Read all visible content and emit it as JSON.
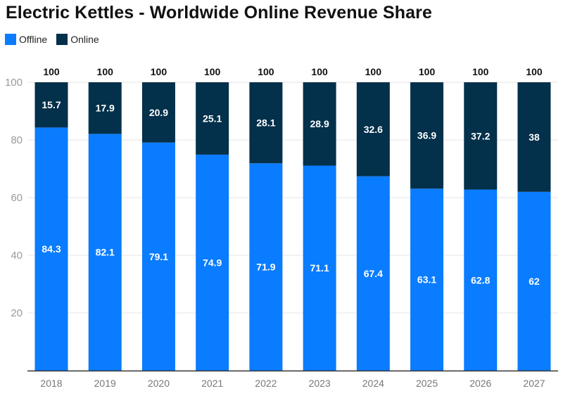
{
  "chart_data": {
    "type": "bar",
    "stacked": true,
    "title": "Electric Kettles - Worldwide Online Revenue Share",
    "xlabel": "",
    "ylabel": "",
    "ylim": [
      0,
      100
    ],
    "yticks": [
      20,
      40,
      60,
      80,
      100
    ],
    "grid": true,
    "legend_position": "top-left",
    "categories": [
      "2018",
      "2019",
      "2020",
      "2021",
      "2022",
      "2023",
      "2024",
      "2025",
      "2026",
      "2027"
    ],
    "series": [
      {
        "name": "Offline",
        "color": "#0a7cff",
        "values": [
          84.3,
          82.1,
          79.1,
          74.9,
          71.9,
          71.1,
          67.4,
          63.1,
          62.8,
          62
        ]
      },
      {
        "name": "Online",
        "color": "#03304a",
        "values": [
          15.7,
          17.9,
          20.9,
          25.1,
          28.1,
          28.9,
          32.6,
          36.9,
          37.2,
          38
        ]
      }
    ],
    "totals": [
      100,
      100,
      100,
      100,
      100,
      100,
      100,
      100,
      100,
      100
    ]
  }
}
